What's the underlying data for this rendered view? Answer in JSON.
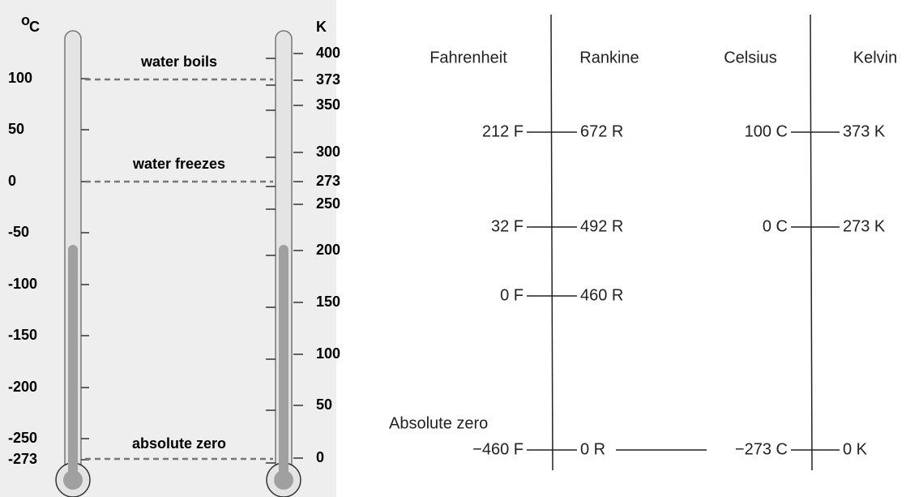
{
  "left_panel": {
    "degree_mark": "o",
    "celsius_unit": "C",
    "kelvin_unit": "K",
    "celsius_ticks": [
      "100",
      "50",
      "0",
      "-50",
      "-100",
      "-150",
      "-200",
      "-250",
      "-273"
    ],
    "kelvin_ticks": [
      "400",
      "373",
      "350",
      "300",
      "273",
      "250",
      "200",
      "150",
      "100",
      "50",
      "0"
    ],
    "markers": [
      "water boils",
      "water freezes",
      "absolute zero"
    ]
  },
  "right_panel": {
    "columns": [
      "Fahrenheit",
      "Rankine",
      "Celsius",
      "Kelvin"
    ],
    "rows": [
      {
        "fahrenheit": "212 F",
        "rankine": "672 R",
        "celsius": "100 C",
        "kelvin": "373 K"
      },
      {
        "fahrenheit": "32 F",
        "rankine": "492 R",
        "celsius": "0 C",
        "kelvin": "273 K"
      },
      {
        "fahrenheit": "0 F",
        "rankine": "460 R"
      },
      {
        "fahrenheit": "−460 F",
        "rankine": "0 R",
        "celsius": "−273 C",
        "kelvin": "0 K"
      }
    ],
    "absolute_zero_label": "Absolute zero"
  }
}
